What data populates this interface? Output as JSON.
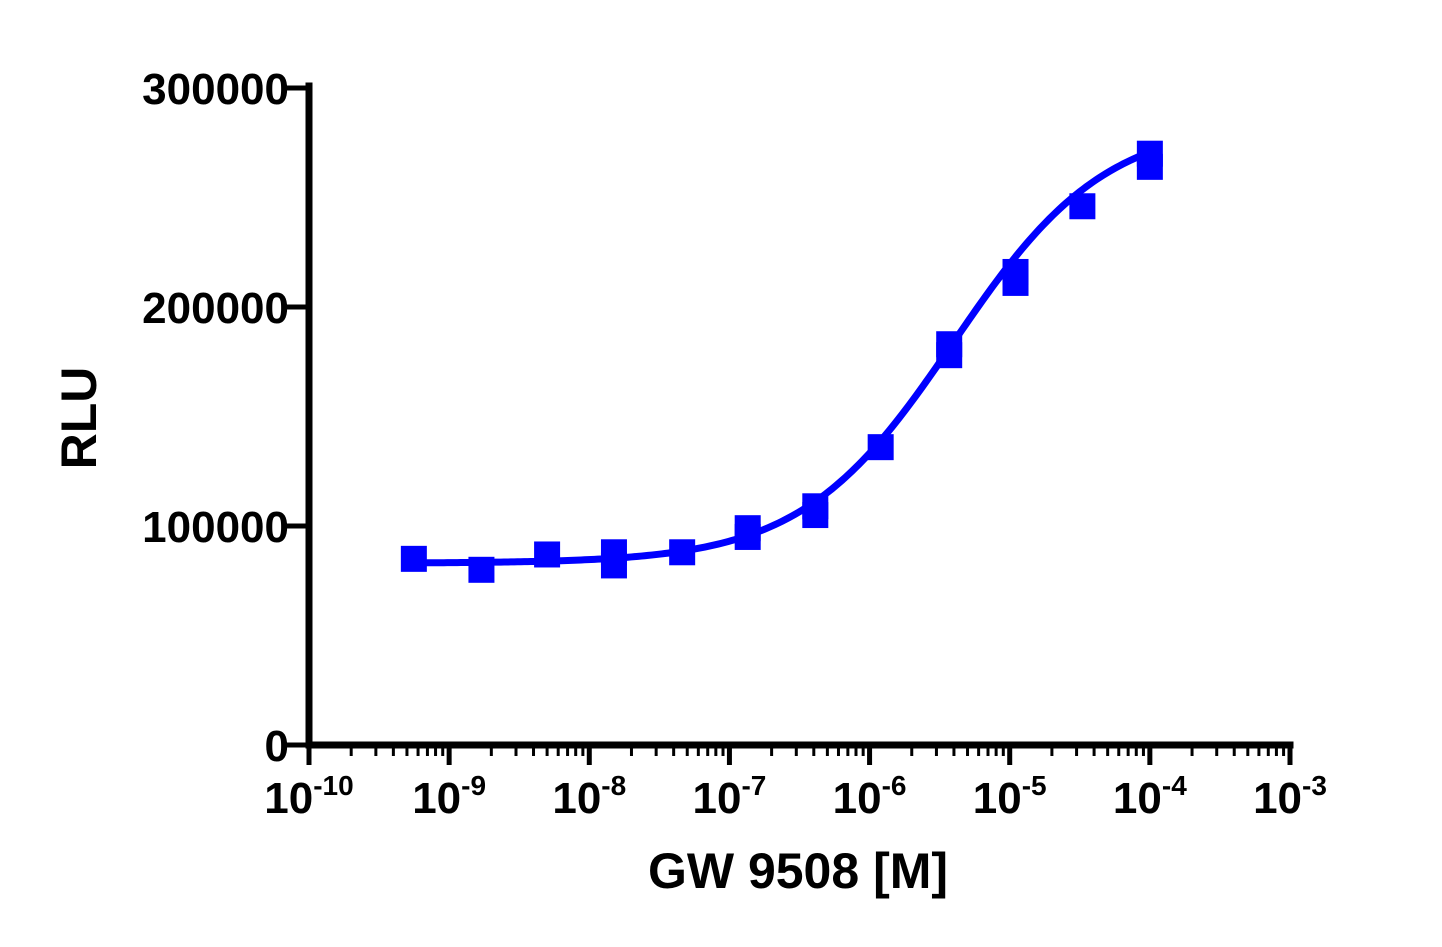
{
  "chart_data": {
    "type": "scatter",
    "title": "",
    "xlabel": "GW 9508 [M]",
    "ylabel": "RLU",
    "xscale": "log",
    "xlim": [
      1e-10,
      0.001
    ],
    "ylim": [
      0,
      300000
    ],
    "x_ticks": [
      {
        "base": "10",
        "exp": "-10",
        "value": 1e-10
      },
      {
        "base": "10",
        "exp": "-9",
        "value": 1e-09
      },
      {
        "base": "10",
        "exp": "-8",
        "value": 1e-08
      },
      {
        "base": "10",
        "exp": "-7",
        "value": 1e-07
      },
      {
        "base": "10",
        "exp": "-6",
        "value": 1e-06
      },
      {
        "base": "10",
        "exp": "-5",
        "value": 1e-05
      },
      {
        "base": "10",
        "exp": "-4",
        "value": 0.0001
      },
      {
        "base": "10",
        "exp": "-3",
        "value": 0.001
      }
    ],
    "y_ticks": [
      "0",
      "100000",
      "200000",
      "300000"
    ],
    "y_tick_values": [
      0,
      100000,
      200000,
      300000
    ],
    "grid": false,
    "legend": "none",
    "marker": "square",
    "color": "#0000ff",
    "points": [
      {
        "x": 5.6e-10,
        "y": 85000
      },
      {
        "x": 1.7e-09,
        "y": 80000
      },
      {
        "x": 5e-09,
        "y": 87000
      },
      {
        "x": 1.5e-08,
        "y": 88000
      },
      {
        "x": 1.5e-08,
        "y": 82000
      },
      {
        "x": 4.6e-08,
        "y": 88000
      },
      {
        "x": 1.35e-07,
        "y": 99000
      },
      {
        "x": 1.35e-07,
        "y": 95000
      },
      {
        "x": 4.1e-07,
        "y": 109000
      },
      {
        "x": 4.1e-07,
        "y": 105000
      },
      {
        "x": 1.2e-06,
        "y": 136000
      },
      {
        "x": 3.7e-06,
        "y": 183000
      },
      {
        "x": 3.7e-06,
        "y": 178000
      },
      {
        "x": 1.1e-05,
        "y": 216000
      },
      {
        "x": 1.1e-05,
        "y": 211000
      },
      {
        "x": 3.3e-05,
        "y": 246000
      },
      {
        "x": 0.0001,
        "y": 270000
      },
      {
        "x": 0.0001,
        "y": 264000
      }
    ],
    "fit": {
      "model": "four-parameter logistic",
      "bottom": 83000,
      "top": 285000,
      "log_ec50": -5.4,
      "hill_slope": 0.8,
      "x_range": [
        5.6e-10,
        0.0001
      ]
    }
  }
}
